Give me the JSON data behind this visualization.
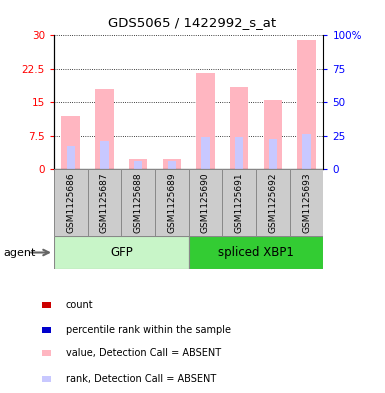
{
  "title": "GDS5065 / 1422992_s_at",
  "samples": [
    "GSM1125686",
    "GSM1125687",
    "GSM1125688",
    "GSM1125689",
    "GSM1125690",
    "GSM1125691",
    "GSM1125692",
    "GSM1125693"
  ],
  "absent_value": [
    12.0,
    18.0,
    2.2,
    2.2,
    21.5,
    18.5,
    15.5,
    29.0
  ],
  "absent_rank": [
    17.5,
    21.0,
    6.0,
    6.0,
    24.0,
    24.0,
    22.5,
    26.0
  ],
  "ylim_left": [
    0,
    30
  ],
  "ylim_right": [
    0,
    100
  ],
  "yticks_left": [
    0,
    7.5,
    15,
    22.5,
    30
  ],
  "yticks_right": [
    0,
    25,
    50,
    75,
    100
  ],
  "ytick_labels_left": [
    "0",
    "7.5",
    "15",
    "22.5",
    "30"
  ],
  "ytick_labels_right": [
    "0",
    "25",
    "50",
    "75",
    "100%"
  ],
  "absent_bar_color": "#ffb6c1",
  "absent_rank_color": "#c8c8ff",
  "count_color": "#cc0000",
  "rank_color": "#0000cc",
  "gfp_color_light": "#c8f5c8",
  "gfp_color_dark": "#33cc33",
  "xbp1_color": "#33cc33",
  "sample_box_color": "#cccccc",
  "legend_items": [
    {
      "label": "count",
      "color": "#cc0000"
    },
    {
      "label": "percentile rank within the sample",
      "color": "#0000cc"
    },
    {
      "label": "value, Detection Call = ABSENT",
      "color": "#ffb6c1"
    },
    {
      "label": "rank, Detection Call = ABSENT",
      "color": "#c8c8ff"
    }
  ]
}
